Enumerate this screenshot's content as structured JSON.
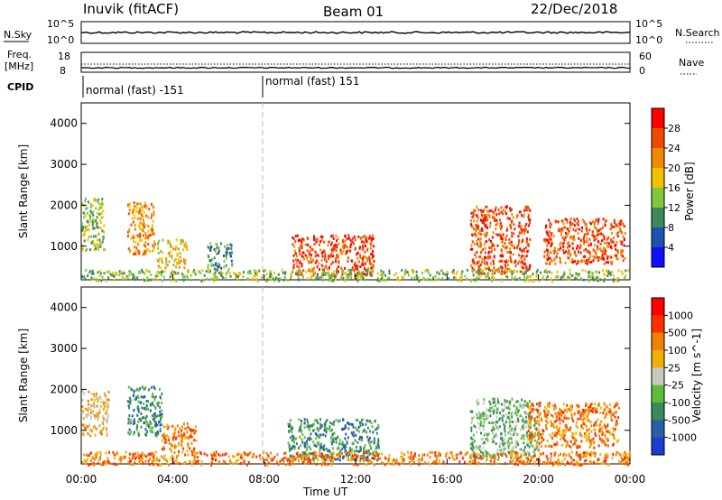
{
  "header": {
    "station": "Inuvik (fitACF)",
    "beam": "Beam 01",
    "date": "22/Dec/2018"
  },
  "noise_panel": {
    "left_label": "N.Sky",
    "right_label": "N.Search",
    "left_ticks": [
      "10^5",
      "10^0"
    ],
    "right_ticks": [
      "10^5",
      "10^0"
    ]
  },
  "freq_panel": {
    "left_label_1": "Freq.",
    "left_label_2": "[MHz]",
    "right_label": "Nave",
    "left_ticks": [
      "18",
      "8"
    ],
    "right_ticks": [
      "60",
      "0"
    ]
  },
  "cpid": {
    "label": "CPID",
    "segments": [
      {
        "text": "normal (fast) -151",
        "start_hour": 0
      },
      {
        "text": "normal (fast) 151",
        "start_hour": 8
      }
    ]
  },
  "time_axis": {
    "label": "Time UT",
    "ticks": [
      "00:00",
      "04:00",
      "08:00",
      "12:00",
      "16:00",
      "20:00",
      "00:00"
    ]
  },
  "chart_data": [
    {
      "type": "heatmap",
      "title": "",
      "xlabel": "Time UT",
      "ylabel": "Slant Range [km]",
      "xlim": [
        0,
        24
      ],
      "ylim": [
        180,
        4500
      ],
      "yticks": [
        "1000",
        "2000",
        "3000",
        "4000"
      ],
      "colorbar": {
        "label": "Power [dB]",
        "ticks": [
          "4",
          "8",
          "12",
          "16",
          "20",
          "24",
          "28"
        ],
        "colors": [
          "#1010ff",
          "#2050b0",
          "#3a8a5c",
          "#7fc83c",
          "#f5c000",
          "#f08a00",
          "#f04a00",
          "#ff0000"
        ]
      },
      "scatter_regions": [
        {
          "t": [
            0.0,
            1.0
          ],
          "r": [
            900,
            2200
          ],
          "level": 3
        },
        {
          "t": [
            2.0,
            3.2
          ],
          "r": [
            800,
            2100
          ],
          "level": 5
        },
        {
          "t": [
            3.3,
            4.6
          ],
          "r": [
            500,
            1200
          ],
          "level": 4
        },
        {
          "t": [
            5.5,
            6.6
          ],
          "r": [
            450,
            1100
          ],
          "level": 2
        },
        {
          "t": [
            9.2,
            12.8
          ],
          "r": [
            300,
            1300
          ],
          "level": 6
        },
        {
          "t": [
            17.0,
            19.6
          ],
          "r": [
            350,
            2000
          ],
          "level": 6
        },
        {
          "t": [
            20.2,
            23.8
          ],
          "r": [
            600,
            1700
          ],
          "level": 6
        },
        {
          "t": [
            0.0,
            24.0
          ],
          "r": [
            180,
            450
          ],
          "level": 3
        }
      ]
    },
    {
      "type": "heatmap",
      "title": "",
      "xlabel": "Time UT",
      "ylabel": "Slant Range [km]",
      "xlim": [
        0,
        24
      ],
      "ylim": [
        180,
        4500
      ],
      "yticks": [
        "1000",
        "2000",
        "3000",
        "4000"
      ],
      "colorbar": {
        "label": "Velocity [m s^-1]",
        "ticks": [
          "1000",
          "500",
          "100",
          "25",
          "-25",
          "-100",
          "-500",
          "-1000"
        ],
        "colors": [
          "#1a3fd0",
          "#2a5fa8",
          "#3a8a5c",
          "#5cbf3a",
          "#c8c8c0",
          "#f0b000",
          "#f08000",
          "#ff3000",
          "#ff0000"
        ]
      },
      "scatter_regions": [
        {
          "t": [
            0.0,
            1.2
          ],
          "r": [
            900,
            2000
          ],
          "level": 5
        },
        {
          "t": [
            2.0,
            3.5
          ],
          "r": [
            900,
            2100
          ],
          "level": 2
        },
        {
          "t": [
            3.5,
            5.0
          ],
          "r": [
            500,
            1200
          ],
          "level": 6
        },
        {
          "t": [
            9.0,
            13.0
          ],
          "r": [
            300,
            1300
          ],
          "level": 2
        },
        {
          "t": [
            17.0,
            20.0
          ],
          "r": [
            350,
            1800
          ],
          "level": 3
        },
        {
          "t": [
            19.5,
            23.5
          ],
          "r": [
            600,
            1700
          ],
          "level": 6
        },
        {
          "t": [
            0.0,
            24.0
          ],
          "r": [
            180,
            500
          ],
          "level": 6
        }
      ]
    }
  ]
}
